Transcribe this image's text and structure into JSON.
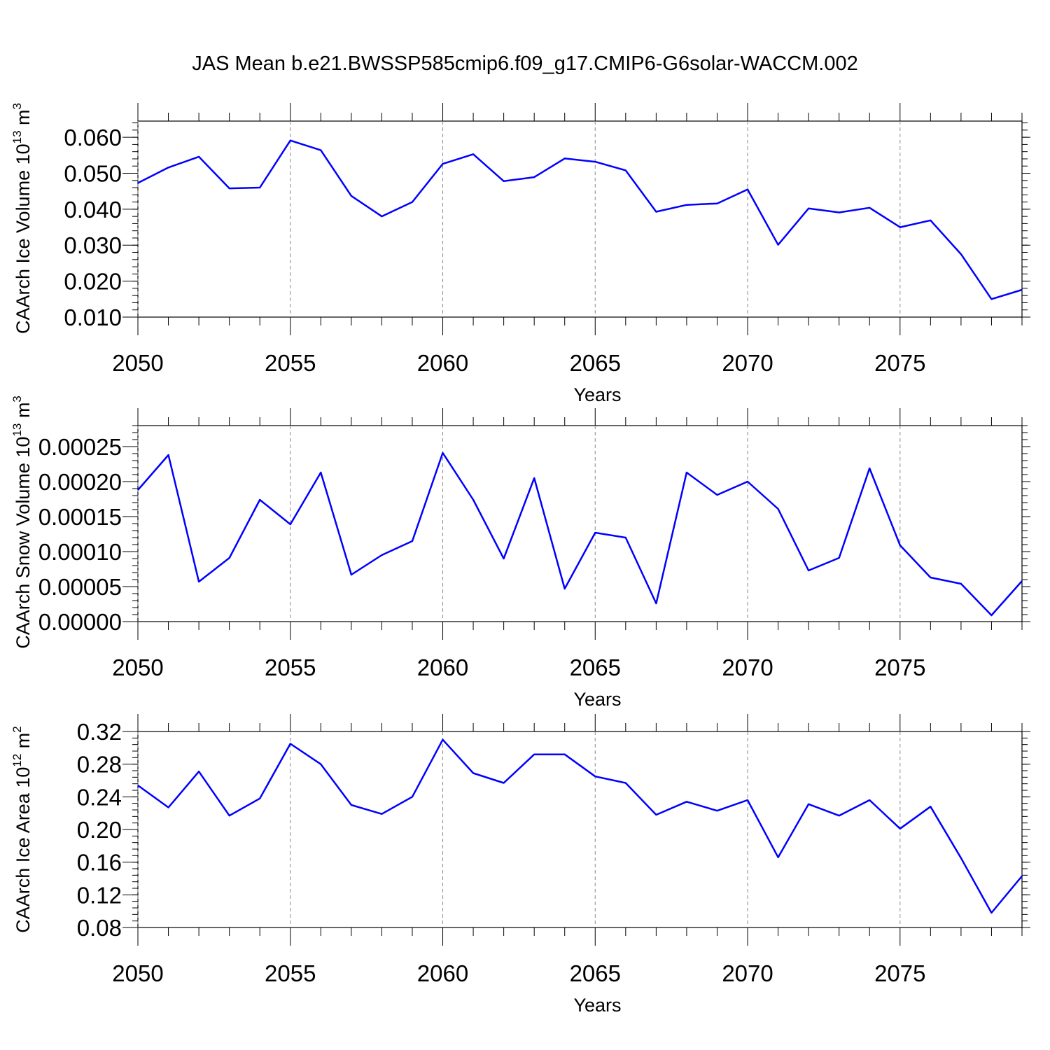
{
  "title": "JAS Mean b.e21.BWSSP585cmip6.f09_g17.CMIP6-G6solar-WACCM.002",
  "chart_data": [
    {
      "type": "line",
      "ylabel": {
        "main": "CAArch Ice Volume 10",
        "exp": "13",
        "unit": " m",
        "unit_exp": "3"
      },
      "xlabel": "Years",
      "x": [
        2050,
        2051,
        2052,
        2053,
        2054,
        2055,
        2056,
        2057,
        2058,
        2059,
        2060,
        2061,
        2062,
        2063,
        2064,
        2065,
        2066,
        2067,
        2068,
        2069,
        2070,
        2071,
        2072,
        2073,
        2074,
        2075,
        2076,
        2077,
        2078,
        2079
      ],
      "series": [
        {
          "values": [
            0.0473,
            0.0516,
            0.0546,
            0.0458,
            0.046,
            0.0591,
            0.0564,
            0.0437,
            0.038,
            0.042,
            0.0526,
            0.0553,
            0.0478,
            0.0489,
            0.0541,
            0.0532,
            0.0508,
            0.0393,
            0.0412,
            0.0416,
            0.0455,
            0.0301,
            0.0402,
            0.0391,
            0.0404,
            0.035,
            0.0369,
            0.0275,
            0.015,
            0.0176
          ]
        }
      ],
      "xlim": [
        2050,
        2079
      ],
      "ylim": [
        0.01,
        0.0645
      ],
      "yticks": [
        0.01,
        0.02,
        0.03,
        0.04,
        0.05,
        0.06
      ],
      "ytick_labels": [
        "0.010",
        "0.020",
        "0.030",
        "0.040",
        "0.050",
        "0.060"
      ],
      "xticks": [
        2050,
        2055,
        2060,
        2065,
        2070,
        2075
      ],
      "xtick_labels": [
        "2050",
        "2055",
        "2060",
        "2065",
        "2070",
        "2075"
      ],
      "color": "#0000ff"
    },
    {
      "type": "line",
      "ylabel": {
        "main": "CAArch Snow Volume 10",
        "exp": "13",
        "unit": " m",
        "unit_exp": "3"
      },
      "xlabel": "Years",
      "x": [
        2050,
        2051,
        2052,
        2053,
        2054,
        2055,
        2056,
        2057,
        2058,
        2059,
        2060,
        2061,
        2062,
        2063,
        2064,
        2065,
        2066,
        2067,
        2068,
        2069,
        2070,
        2071,
        2072,
        2073,
        2074,
        2075,
        2076,
        2077,
        2078,
        2079
      ],
      "series": [
        {
          "values": [
            0.000188,
            0.000238,
            5.7e-05,
            9.1e-05,
            0.000174,
            0.000139,
            0.000213,
            6.7e-05,
            9.5e-05,
            0.000115,
            0.000241,
            0.000174,
            9e-05,
            0.000205,
            4.7e-05,
            0.000127,
            0.00012,
            2.6e-05,
            0.000213,
            0.000181,
            0.0002,
            0.000161,
            7.3e-05,
            9.1e-05,
            0.000219,
            0.000109,
            6.3e-05,
            5.4e-05,
            9e-06,
            5.8e-05
          ]
        }
      ],
      "xlim": [
        2050,
        2079
      ],
      "ylim": [
        0.0,
        0.00028
      ],
      "yticks": [
        0.0,
        5e-05,
        0.0001,
        0.00015,
        0.0002,
        0.00025
      ],
      "ytick_labels": [
        "0.00000",
        "0.00005",
        "0.00010",
        "0.00015",
        "0.00020",
        "0.00025"
      ],
      "xticks": [
        2050,
        2055,
        2060,
        2065,
        2070,
        2075
      ],
      "xtick_labels": [
        "2050",
        "2055",
        "2060",
        "2065",
        "2070",
        "2075"
      ],
      "color": "#0000ff"
    },
    {
      "type": "line",
      "ylabel": {
        "main": "CAArch Ice Area 10",
        "exp": "12",
        "unit": " m",
        "unit_exp": "2"
      },
      "xlabel": "Years",
      "x": [
        2050,
        2051,
        2052,
        2053,
        2054,
        2055,
        2056,
        2057,
        2058,
        2059,
        2060,
        2061,
        2062,
        2063,
        2064,
        2065,
        2066,
        2067,
        2068,
        2069,
        2070,
        2071,
        2072,
        2073,
        2074,
        2075,
        2076,
        2077,
        2078,
        2079
      ],
      "series": [
        {
          "values": [
            0.254,
            0.227,
            0.271,
            0.217,
            0.238,
            0.305,
            0.28,
            0.23,
            0.219,
            0.24,
            0.31,
            0.269,
            0.257,
            0.292,
            0.292,
            0.265,
            0.257,
            0.218,
            0.234,
            0.223,
            0.236,
            0.166,
            0.231,
            0.217,
            0.236,
            0.201,
            0.228,
            0.165,
            0.098,
            0.143
          ]
        }
      ],
      "xlim": [
        2050,
        2079
      ],
      "ylim": [
        0.08,
        0.32
      ],
      "yticks": [
        0.08,
        0.12,
        0.16,
        0.2,
        0.24,
        0.28,
        0.32
      ],
      "ytick_labels": [
        "0.08",
        "0.12",
        "0.16",
        "0.20",
        "0.24",
        "0.28",
        "0.32"
      ],
      "xticks": [
        2050,
        2055,
        2060,
        2065,
        2070,
        2075
      ],
      "xtick_labels": [
        "2050",
        "2055",
        "2060",
        "2065",
        "2070",
        "2075"
      ],
      "color": "#0000ff"
    }
  ]
}
